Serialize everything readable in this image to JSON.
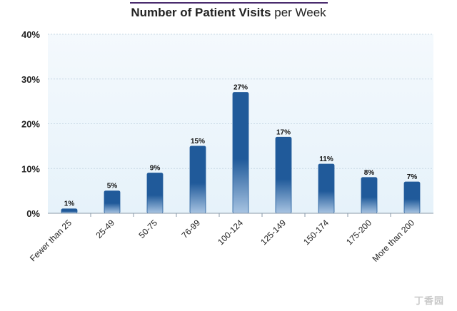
{
  "title": {
    "strong": "Number of Patient Visits",
    "rest": "per Week"
  },
  "watermark": "丁香园",
  "colors": {
    "bar_top": "#205a9a",
    "bar_bottom": "#a8c4e2",
    "plot_bg_top": "#f4f9fd",
    "plot_bg_bottom": "#e6f2fa",
    "grid": "#c8d8e4",
    "title_rule": "#4a2c6e"
  },
  "chart_data": {
    "type": "bar",
    "title": "Number of Patient Visits per Week",
    "categories": [
      "Fewer than 25",
      "25-49",
      "50-75",
      "76-99",
      "100-124",
      "125-149",
      "150-174",
      "175-200",
      "More than 200"
    ],
    "values": [
      1,
      5,
      9,
      15,
      27,
      17,
      11,
      8,
      7
    ],
    "data_labels": [
      "1%",
      "5%",
      "9%",
      "15%",
      "27%",
      "17%",
      "11%",
      "8%",
      "7%"
    ],
    "y_ticks": [
      "0%",
      "10%",
      "20%",
      "30%",
      "40%"
    ],
    "y_tick_values": [
      0,
      10,
      20,
      30,
      40
    ],
    "ylim": [
      0,
      40
    ],
    "xlabel": "",
    "ylabel": "",
    "grid": true,
    "legend": "none"
  }
}
